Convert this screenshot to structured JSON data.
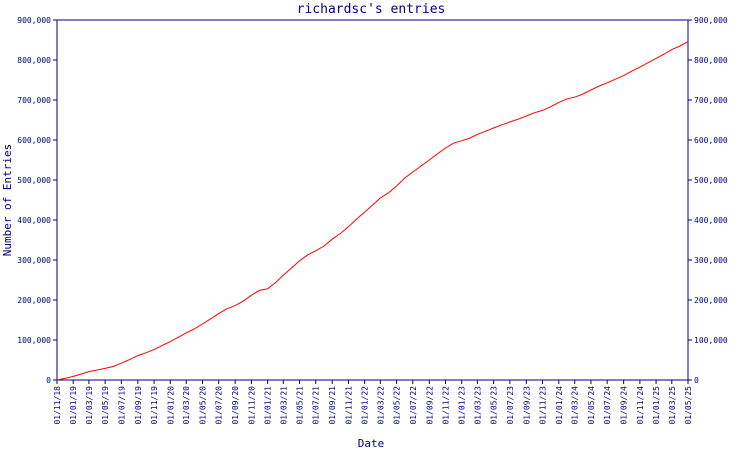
{
  "chart_data": {
    "type": "line",
    "title": "richardsc's entries",
    "xlabel": "Date",
    "ylabel": "Number of Entries",
    "grid": false,
    "legend": "none",
    "ylim": [
      0,
      900000
    ],
    "xlim": [
      "2018-11-01",
      "2025-05-01"
    ],
    "y_ticks": [
      0,
      100000,
      200000,
      300000,
      400000,
      500000,
      600000,
      700000,
      800000,
      900000
    ],
    "y_tick_labels": [
      "0",
      "100,000",
      "200,000",
      "300,000",
      "400,000",
      "500,000",
      "600,000",
      "700,000",
      "800,000",
      "900,000"
    ],
    "x_ticks": [
      "2018-11-01",
      "2019-01-01",
      "2019-03-01",
      "2019-05-01",
      "2019-07-01",
      "2019-09-01",
      "2019-11-01",
      "2020-01-01",
      "2020-03-01",
      "2020-05-01",
      "2020-07-01",
      "2020-09-01",
      "2020-11-01",
      "2021-01-01",
      "2021-03-01",
      "2021-05-01",
      "2021-07-01",
      "2021-09-01",
      "2021-11-01",
      "2022-01-01",
      "2022-03-01",
      "2022-05-01",
      "2022-07-01",
      "2022-09-01",
      "2022-11-01",
      "2023-01-01",
      "2023-03-01",
      "2023-05-01",
      "2023-07-01",
      "2023-09-01",
      "2023-11-01",
      "2024-01-01",
      "2024-03-01",
      "2024-05-01",
      "2024-07-01",
      "2024-09-01",
      "2024-11-01",
      "2025-01-01",
      "2025-03-01",
      "2025-05-01"
    ],
    "x_tick_labels": [
      "01/11/18",
      "01/01/19",
      "01/03/19",
      "01/05/19",
      "01/07/19",
      "01/09/19",
      "01/11/19",
      "01/01/20",
      "01/03/20",
      "01/05/20",
      "01/07/20",
      "01/09/20",
      "01/11/20",
      "01/01/21",
      "01/03/21",
      "01/05/21",
      "01/07/21",
      "01/09/21",
      "01/11/21",
      "01/01/22",
      "01/03/22",
      "01/05/22",
      "01/07/22",
      "01/09/22",
      "01/11/22",
      "01/01/23",
      "01/03/23",
      "01/05/23",
      "01/07/23",
      "01/09/23",
      "01/11/23",
      "01/01/24",
      "01/03/24",
      "01/05/24",
      "01/07/24",
      "01/09/24",
      "01/11/24",
      "01/01/25",
      "01/03/25",
      "01/05/25"
    ],
    "colors": {
      "axis": "#000080",
      "line": "#ff0000"
    },
    "series": [
      {
        "x": [
          "2018-11-01",
          "2018-12-01",
          "2019-01-01",
          "2019-02-01",
          "2019-03-01",
          "2019-04-01",
          "2019-05-01",
          "2019-06-01",
          "2019-07-01",
          "2019-08-01",
          "2019-09-01",
          "2019-10-01",
          "2019-11-01",
          "2019-12-01",
          "2020-01-01",
          "2020-02-01",
          "2020-03-01",
          "2020-04-01",
          "2020-05-01",
          "2020-06-01",
          "2020-07-01",
          "2020-08-01",
          "2020-09-01",
          "2020-10-01",
          "2020-11-01",
          "2020-12-01",
          "2021-01-01",
          "2021-02-01",
          "2021-03-01",
          "2021-04-01",
          "2021-05-01",
          "2021-06-01",
          "2021-07-01",
          "2021-08-01",
          "2021-09-01",
          "2021-10-01",
          "2021-11-01",
          "2021-12-01",
          "2022-01-01",
          "2022-02-01",
          "2022-03-01",
          "2022-04-01",
          "2022-05-01",
          "2022-06-01",
          "2022-07-01",
          "2022-08-01",
          "2022-09-01",
          "2022-10-01",
          "2022-11-01",
          "2022-12-01",
          "2023-01-01",
          "2023-02-01",
          "2023-03-01",
          "2023-04-01",
          "2023-05-01",
          "2023-06-01",
          "2023-07-01",
          "2023-08-01",
          "2023-09-01",
          "2023-10-01",
          "2023-11-01",
          "2023-12-01",
          "2024-01-01",
          "2024-02-01",
          "2024-03-01",
          "2024-04-01",
          "2024-05-01",
          "2024-06-01",
          "2024-07-01",
          "2024-08-01",
          "2024-09-01",
          "2024-10-01",
          "2024-11-01",
          "2024-12-01",
          "2025-01-01",
          "2025-02-01",
          "2025-03-01",
          "2025-04-01",
          "2025-05-01"
        ],
        "y": [
          0,
          4000,
          9000,
          15000,
          21000,
          25000,
          29000,
          34000,
          42000,
          51000,
          61000,
          68000,
          76000,
          86000,
          96000,
          107000,
          118000,
          128000,
          140000,
          153000,
          166000,
          178000,
          186000,
          197000,
          212000,
          224000,
          228000,
          244000,
          262000,
          280000,
          298000,
          313000,
          323000,
          335000,
          352000,
          366000,
          383000,
          402000,
          420000,
          438000,
          455000,
          468000,
          485000,
          505000,
          520000,
          535000,
          550000,
          565000,
          580000,
          592000,
          598000,
          605000,
          614000,
          622000,
          630000,
          638000,
          645000,
          652000,
          660000,
          668000,
          674000,
          683000,
          694000,
          703000,
          707000,
          715000,
          725000,
          735000,
          743000,
          752000,
          761000,
          772000,
          782000,
          793000,
          804000,
          815000,
          826000,
          835000,
          846000
        ]
      }
    ]
  }
}
